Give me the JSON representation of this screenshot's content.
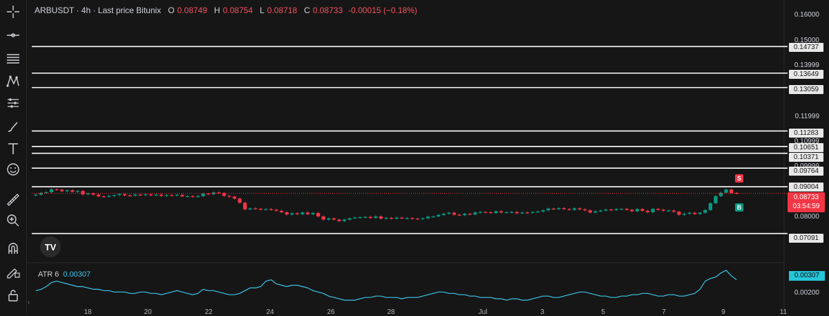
{
  "symbol": "ARBUSDT · 4h · Last price Bitunix",
  "ohlc": {
    "open_label": "O",
    "open": "0.08749",
    "high_label": "H",
    "high": "0.08754",
    "low_label": "L",
    "low": "0.08718",
    "close_label": "C",
    "close": "0.08733",
    "change": "-0.00015 (−0.18%)"
  },
  "price_axis": [
    "0.16000",
    "0.15000",
    "0.13999",
    "0.11999",
    "0.10999",
    "0.09999",
    "0.08000"
  ],
  "levels": [
    "0.14737",
    "0.13649",
    "0.13059",
    "0.11283",
    "0.10651",
    "0.10371",
    "0.09764",
    "0.09004",
    "0.07091"
  ],
  "last_price": {
    "value": "0.08733",
    "countdown": "03:54:59"
  },
  "indicator": {
    "name": "ATR 6",
    "value": "0.00307",
    "axis": "0.00200"
  },
  "x_axis": [
    "18",
    "20",
    "22",
    "24",
    "26",
    "28",
    "Jul",
    "3",
    "5",
    "7",
    "9",
    "11"
  ],
  "signals": {
    "sell": "S",
    "buy": "B"
  },
  "logo": "TV",
  "scroll_left": "‹",
  "colors": {
    "up": "#089981",
    "down": "#f23645",
    "atr": "#3dc6e8",
    "level": "#ffffff"
  },
  "tools": [
    "crosshair-icon",
    "trendline-icon",
    "fib-icon",
    "pattern-icon",
    "prediction-icon",
    "brush-icon",
    "text-icon",
    "emoji-icon",
    "ruler-icon",
    "zoom-icon",
    "magnet-icon",
    "lock-draw-icon",
    "lock-icon"
  ],
  "chart_data": {
    "type": "candlestick",
    "y_range": [
      0.068,
      0.163
    ],
    "horizontal_levels": [
      0.14737,
      0.13649,
      0.13059,
      0.11283,
      0.10651,
      0.10371,
      0.09764,
      0.09004,
      0.07091
    ],
    "closes": [
      0.0868,
      0.0875,
      0.0878,
      0.089,
      0.0888,
      0.0882,
      0.0886,
      0.088,
      0.0883,
      0.0869,
      0.0873,
      0.0868,
      0.0861,
      0.086,
      0.0863,
      0.0866,
      0.087,
      0.0865,
      0.0864,
      0.0868,
      0.0866,
      0.0869,
      0.0865,
      0.0868,
      0.0863,
      0.0866,
      0.0865,
      0.0867,
      0.0861,
      0.0862,
      0.0859,
      0.0862,
      0.0872,
      0.087,
      0.0877,
      0.0874,
      0.0863,
      0.086,
      0.0852,
      0.0835,
      0.0808,
      0.0812,
      0.081,
      0.0807,
      0.0809,
      0.0806,
      0.0802,
      0.0796,
      0.0787,
      0.0792,
      0.0788,
      0.0795,
      0.0788,
      0.0793,
      0.0779,
      0.0766,
      0.0771,
      0.0766,
      0.076,
      0.0766,
      0.0771,
      0.0774,
      0.0776,
      0.0777,
      0.0773,
      0.0779,
      0.077,
      0.0773,
      0.077,
      0.0774,
      0.0771,
      0.0772,
      0.077,
      0.0769,
      0.0771,
      0.0778,
      0.0779,
      0.0785,
      0.079,
      0.0794,
      0.0786,
      0.0784,
      0.079,
      0.0787,
      0.0795,
      0.0797,
      0.0796,
      0.0793,
      0.08,
      0.0795,
      0.0796,
      0.0797,
      0.0792,
      0.0795,
      0.0794,
      0.0797,
      0.0799,
      0.0804,
      0.0811,
      0.0809,
      0.0813,
      0.0809,
      0.0806,
      0.0812,
      0.0808,
      0.0804,
      0.0795,
      0.08,
      0.0803,
      0.0807,
      0.0805,
      0.0809,
      0.081,
      0.0806,
      0.08,
      0.0809,
      0.0802,
      0.0796,
      0.081,
      0.0806,
      0.0802,
      0.0803,
      0.0798,
      0.0786,
      0.079,
      0.0794,
      0.0789,
      0.0794,
      0.0805,
      0.0833,
      0.0862,
      0.0876,
      0.0889,
      0.0875,
      0.0873
    ],
    "atr": [
      0.0023,
      0.0024,
      0.0026,
      0.0029,
      0.003,
      0.0029,
      0.0028,
      0.0027,
      0.0026,
      0.0026,
      0.0025,
      0.0024,
      0.0024,
      0.0023,
      0.0023,
      0.0022,
      0.0022,
      0.0022,
      0.0021,
      0.0021,
      0.0022,
      0.0022,
      0.0021,
      0.0021,
      0.002,
      0.0021,
      0.0022,
      0.0023,
      0.0022,
      0.0021,
      0.002,
      0.0021,
      0.0024,
      0.0023,
      0.0023,
      0.0022,
      0.0021,
      0.002,
      0.002,
      0.0021,
      0.0023,
      0.0025,
      0.0025,
      0.0026,
      0.003,
      0.0031,
      0.0028,
      0.0027,
      0.0026,
      0.0027,
      0.0027,
      0.0026,
      0.0025,
      0.0023,
      0.0022,
      0.0021,
      0.0019,
      0.0018,
      0.0017,
      0.0016,
      0.0016,
      0.0016,
      0.0017,
      0.0018,
      0.0018,
      0.0019,
      0.0019,
      0.0018,
      0.0018,
      0.0018,
      0.0017,
      0.0018,
      0.0018,
      0.0018,
      0.0019,
      0.002,
      0.0021,
      0.0022,
      0.0022,
      0.0021,
      0.0021,
      0.002,
      0.002,
      0.0019,
      0.0019,
      0.0018,
      0.0018,
      0.0018,
      0.0017,
      0.0017,
      0.0016,
      0.0017,
      0.0017,
      0.0016,
      0.0016,
      0.0017,
      0.0018,
      0.0019,
      0.0019,
      0.0018,
      0.0018,
      0.0019,
      0.002,
      0.0021,
      0.0022,
      0.0022,
      0.0021,
      0.002,
      0.0019,
      0.0019,
      0.0018,
      0.0018,
      0.0019,
      0.0019,
      0.002,
      0.002,
      0.0021,
      0.0021,
      0.002,
      0.0019,
      0.0019,
      0.002,
      0.002,
      0.0019,
      0.0019,
      0.002,
      0.0021,
      0.0024,
      0.003,
      0.0032,
      0.0033,
      0.0036,
      0.0038,
      0.0034,
      0.0031
    ]
  }
}
